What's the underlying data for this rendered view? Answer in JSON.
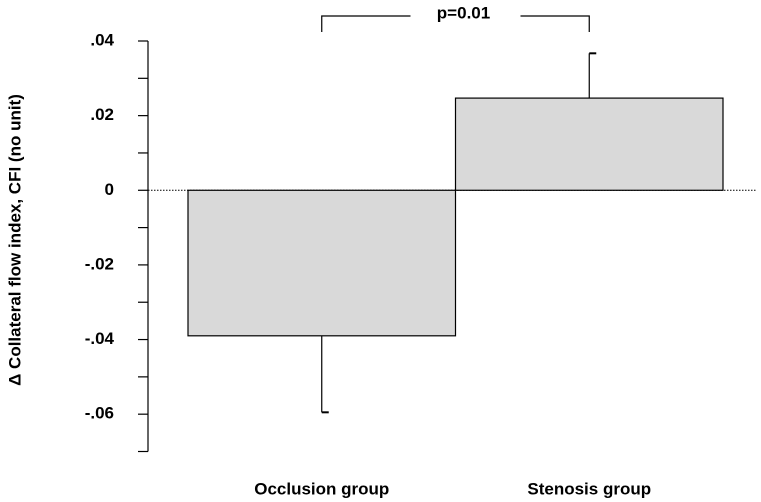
{
  "chart_data": {
    "type": "bar",
    "y_label": "Δ Collateral flow index, CFI (no unit)",
    "categories": [
      "Occlusion group",
      "Stenosis group"
    ],
    "values": [
      -0.039,
      0.0247
    ],
    "errors": [
      0.0205,
      0.012
    ],
    "color": "#d9d9d9",
    "ylim": [
      -0.07,
      0.04
    ],
    "yticks": [
      {
        "value": 0.04,
        "label": ".04"
      },
      {
        "value": 0.02,
        "label": ".02"
      },
      0,
      {
        "value": -0.02,
        "label": "-.02"
      },
      {
        "value": -0.04,
        "label": "-.04"
      },
      {
        "value": -0.06,
        "label": "-.06"
      }
    ],
    "minor_yticks": [
      0.03,
      0.01,
      -0.01,
      -0.03,
      -0.05,
      -0.07
    ],
    "annotation": "p=0.01",
    "grid": false
  }
}
